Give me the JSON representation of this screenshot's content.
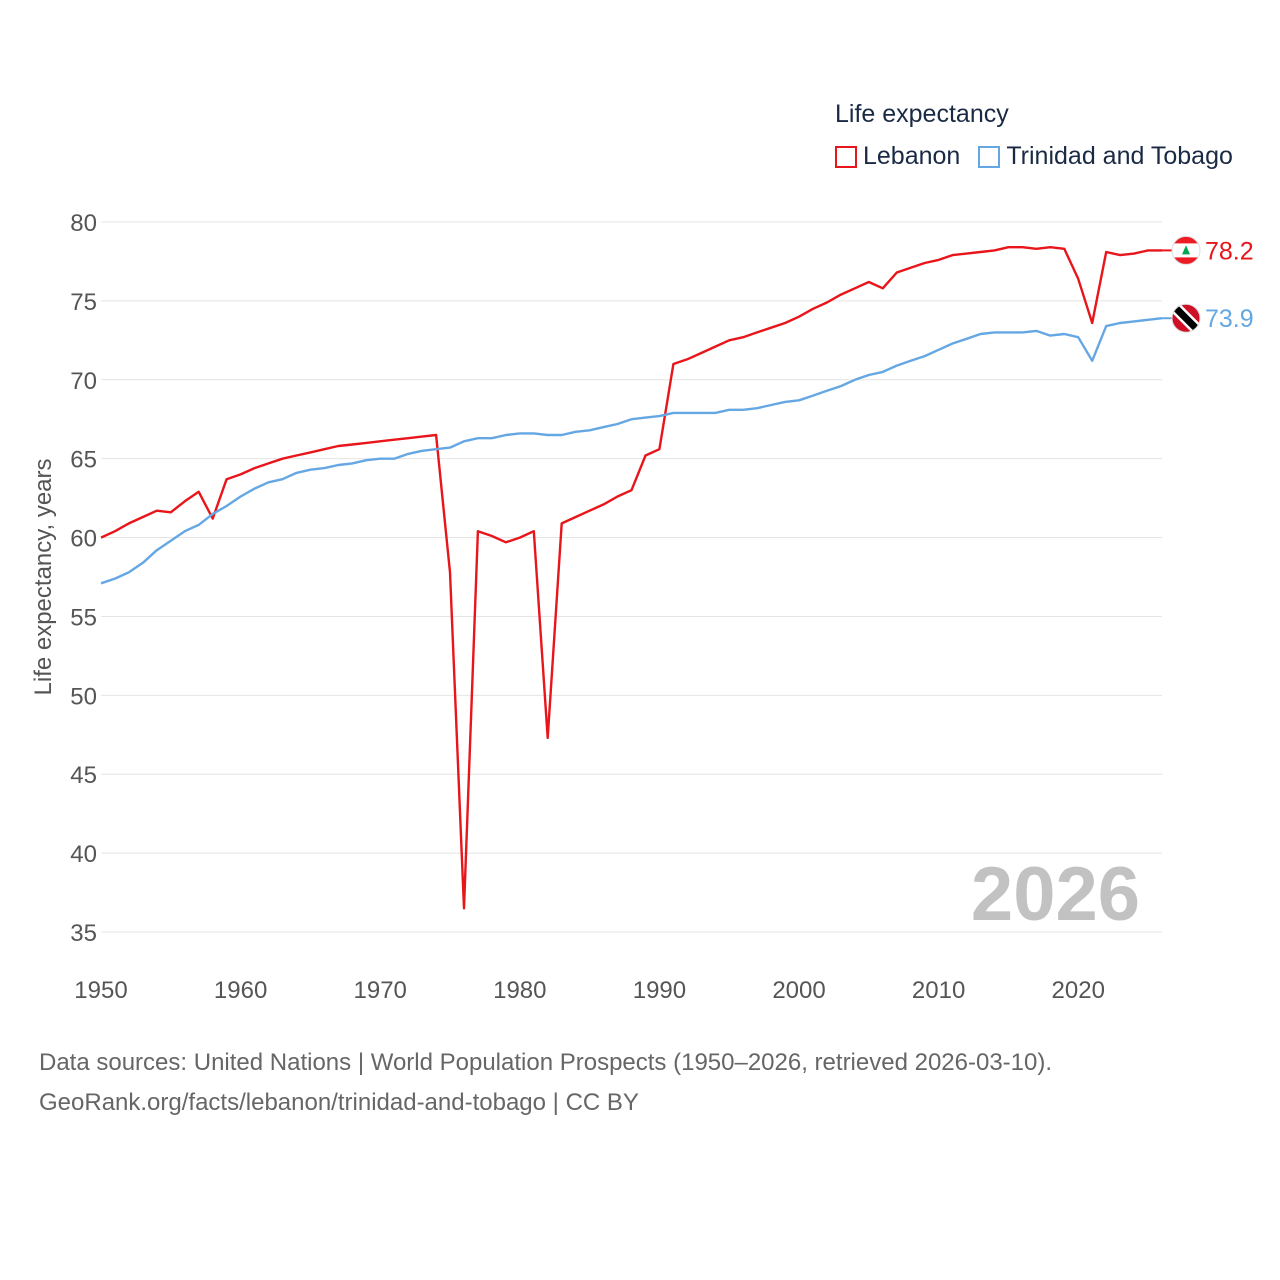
{
  "chart_data": {
    "type": "line",
    "title": "Life expectancy",
    "xlabel": "",
    "ylabel": "Life expectancy, years",
    "xlim": [
      1950,
      2026
    ],
    "ylim": [
      35,
      80
    ],
    "x_ticks": [
      1950,
      1960,
      1970,
      1980,
      1990,
      2000,
      2010,
      2020
    ],
    "y_ticks": [
      35,
      40,
      45,
      50,
      55,
      60,
      65,
      70,
      75,
      80
    ],
    "grid": true,
    "legend_position": "top-right",
    "year_label": "2026",
    "x": [
      1950,
      1951,
      1952,
      1953,
      1954,
      1955,
      1956,
      1957,
      1958,
      1959,
      1960,
      1961,
      1962,
      1963,
      1964,
      1965,
      1966,
      1967,
      1968,
      1969,
      1970,
      1971,
      1972,
      1973,
      1974,
      1975,
      1976,
      1977,
      1978,
      1979,
      1980,
      1981,
      1982,
      1983,
      1984,
      1985,
      1986,
      1987,
      1988,
      1989,
      1990,
      1991,
      1992,
      1993,
      1994,
      1995,
      1996,
      1997,
      1998,
      1999,
      2000,
      2001,
      2002,
      2003,
      2004,
      2005,
      2006,
      2007,
      2008,
      2009,
      2010,
      2011,
      2012,
      2013,
      2014,
      2015,
      2016,
      2017,
      2018,
      2019,
      2020,
      2021,
      2022,
      2023,
      2024,
      2025,
      2026
    ],
    "series": [
      {
        "name": "Lebanon",
        "color": "#e8151b",
        "end_label": "78.2",
        "flag": "lebanon-flag",
        "values": [
          60.0,
          60.4,
          60.9,
          61.3,
          61.7,
          61.6,
          62.3,
          62.9,
          61.2,
          63.7,
          64.0,
          64.4,
          64.7,
          65.0,
          65.2,
          65.4,
          65.6,
          65.8,
          65.9,
          66.0,
          66.1,
          66.2,
          66.3,
          66.4,
          66.5,
          57.8,
          36.5,
          60.4,
          60.1,
          59.7,
          60.0,
          60.4,
          47.3,
          60.9,
          61.3,
          61.7,
          62.1,
          62.6,
          63.0,
          65.2,
          65.6,
          71.0,
          71.3,
          71.7,
          72.1,
          72.5,
          72.7,
          73.0,
          73.3,
          73.6,
          74.0,
          74.5,
          74.9,
          75.4,
          75.8,
          76.2,
          75.8,
          76.8,
          77.1,
          77.4,
          77.6,
          77.9,
          78.0,
          78.1,
          78.2,
          78.4,
          78.4,
          78.3,
          78.4,
          78.3,
          76.4,
          73.6,
          78.1,
          77.9,
          78.0,
          78.2,
          78.2
        ]
      },
      {
        "name": "Trinidad and Tobago",
        "color": "#65a7e3",
        "end_label": "73.9",
        "flag": "trinidad-and-tobago-flag",
        "values": [
          57.1,
          57.4,
          57.8,
          58.4,
          59.2,
          59.8,
          60.4,
          60.8,
          61.5,
          62.0,
          62.6,
          63.1,
          63.5,
          63.7,
          64.1,
          64.3,
          64.4,
          64.6,
          64.7,
          64.9,
          65.0,
          65.0,
          65.3,
          65.5,
          65.6,
          65.7,
          66.1,
          66.3,
          66.3,
          66.5,
          66.6,
          66.6,
          66.5,
          66.5,
          66.7,
          66.8,
          67.0,
          67.2,
          67.5,
          67.6,
          67.7,
          67.9,
          67.9,
          67.9,
          67.9,
          68.1,
          68.1,
          68.2,
          68.4,
          68.6,
          68.7,
          69.0,
          69.3,
          69.6,
          70.0,
          70.3,
          70.5,
          70.9,
          71.2,
          71.5,
          71.9,
          72.3,
          72.6,
          72.9,
          73.0,
          73.0,
          73.0,
          73.1,
          72.8,
          72.9,
          72.7,
          71.2,
          73.4,
          73.6,
          73.7,
          73.8,
          73.9
        ]
      }
    ]
  },
  "footer": {
    "line1": "Data sources: United Nations | World Population Prospects (1950–2026, retrieved 2026-03-10).",
    "line2": "GeoRank.org/facts/lebanon/trinidad-and-tobago | CC BY"
  }
}
